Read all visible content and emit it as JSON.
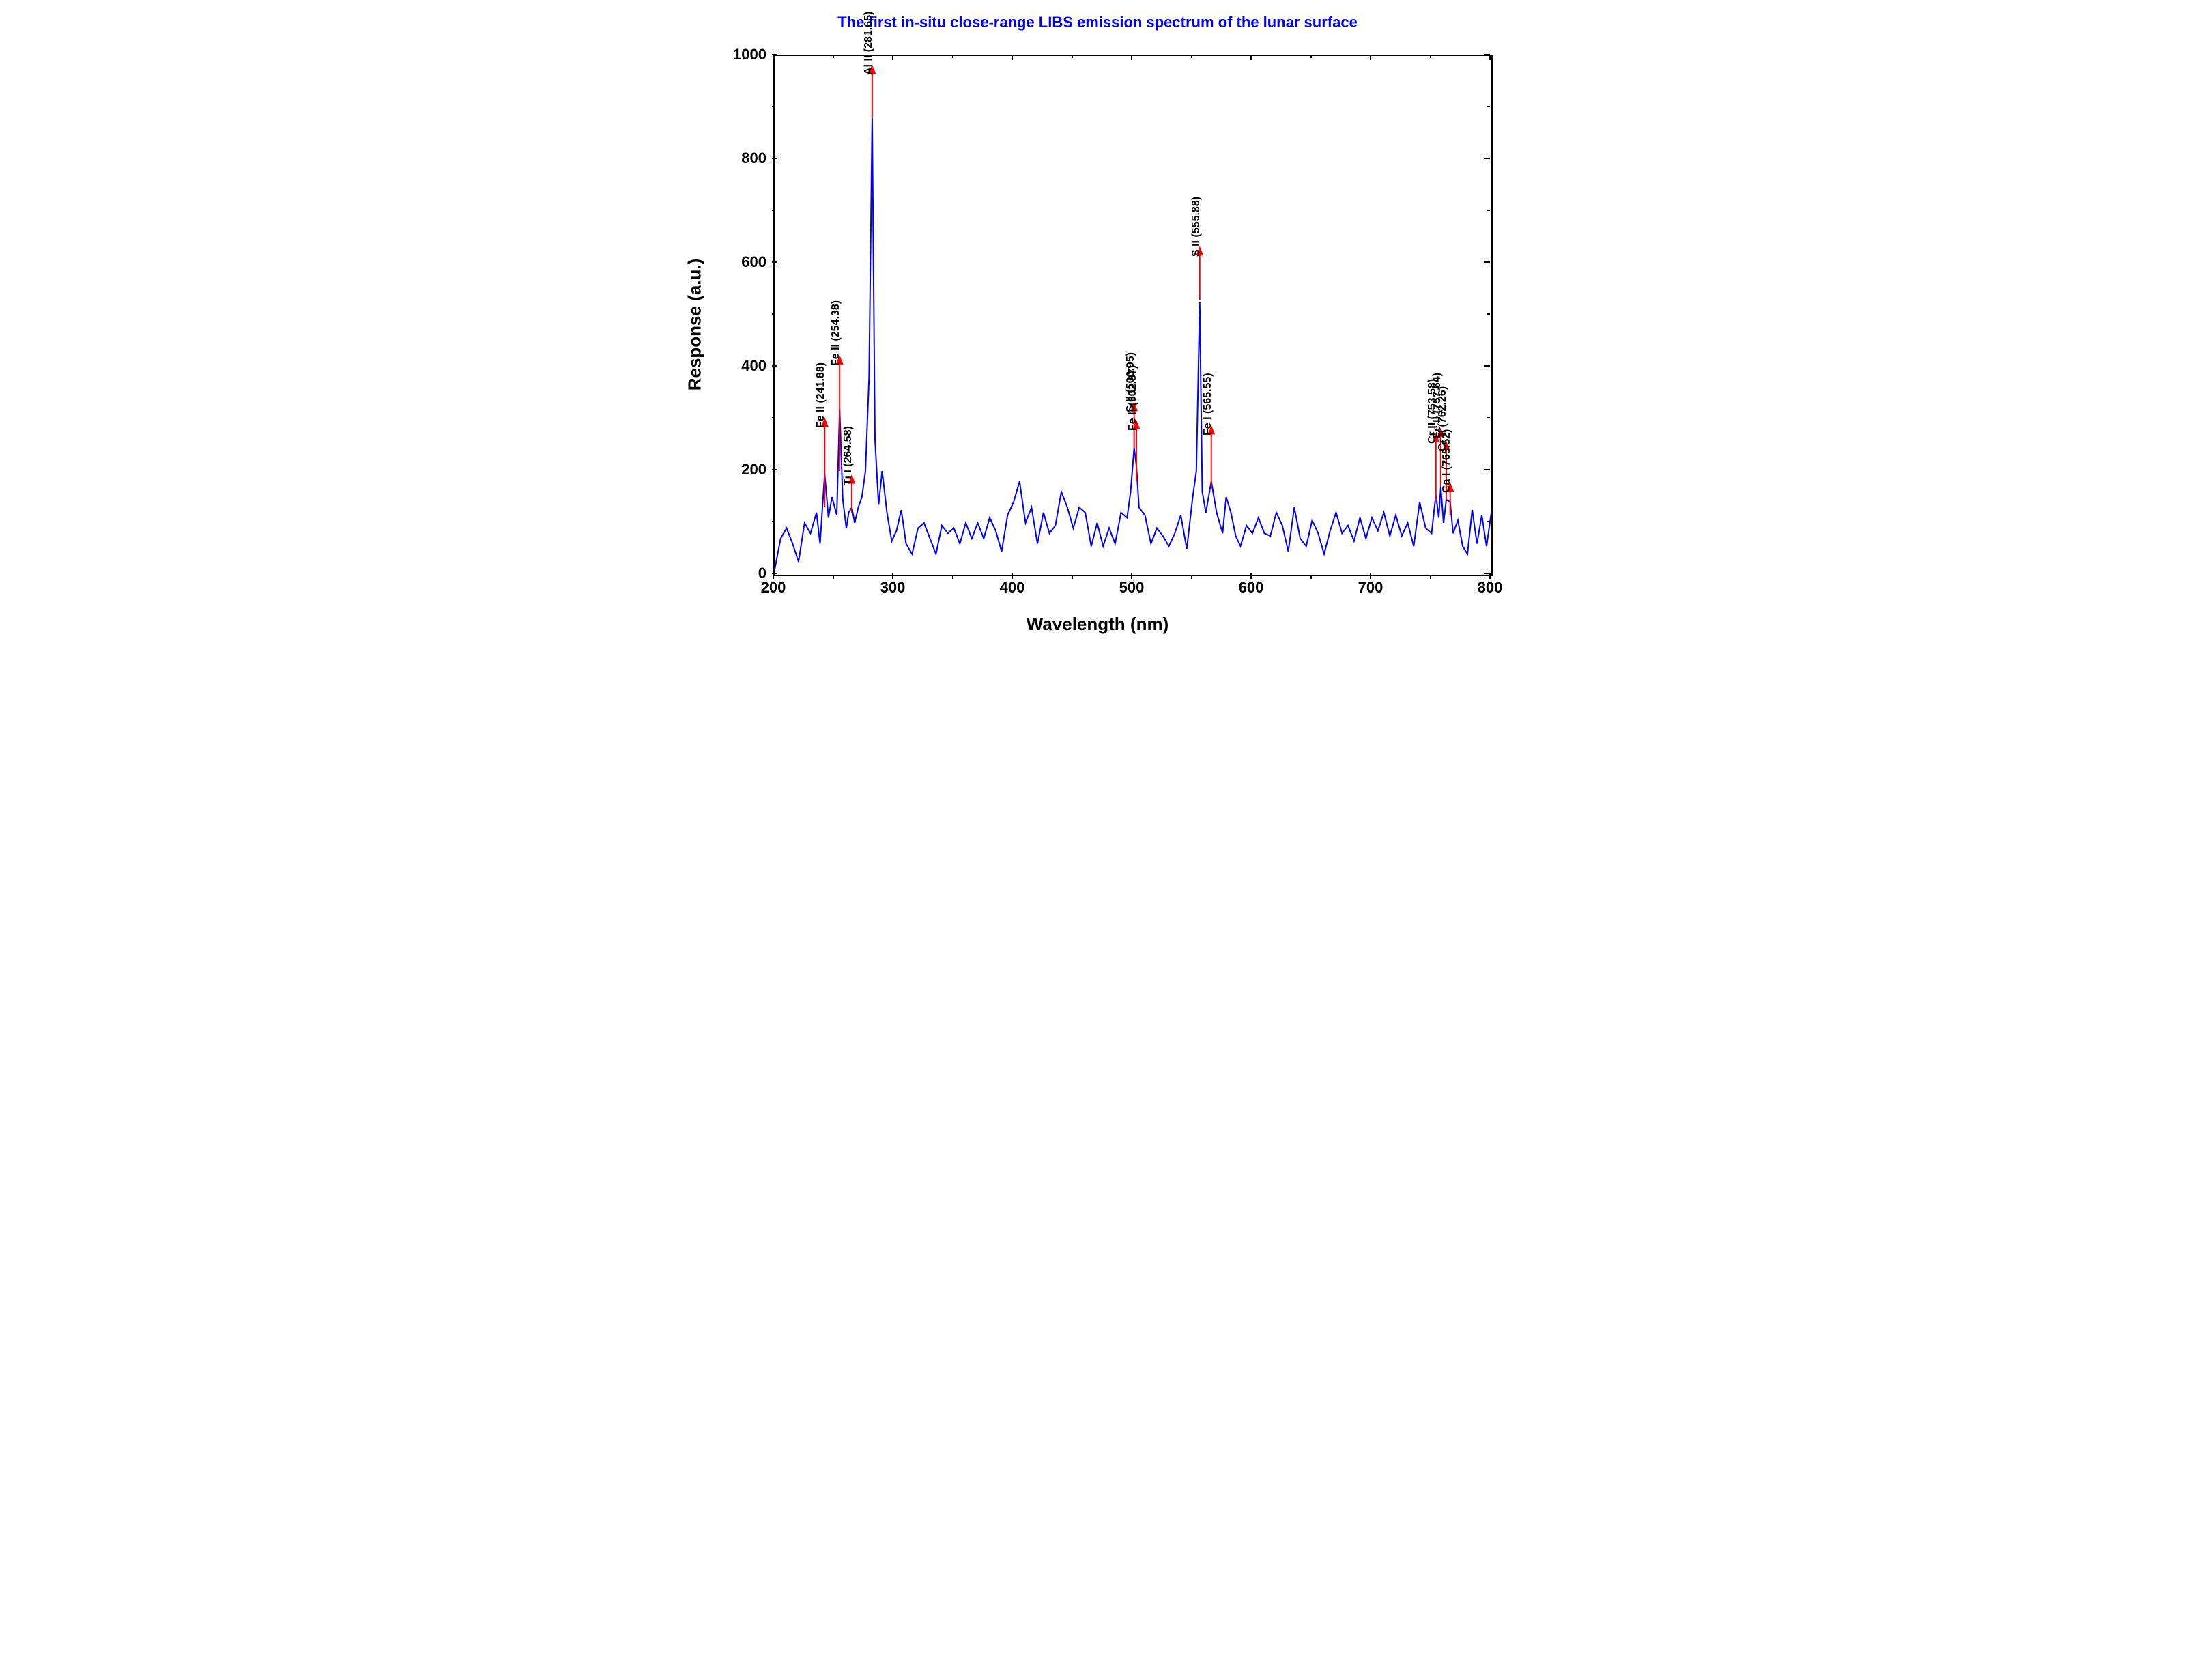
{
  "chart": {
    "type": "line-spectrum",
    "title": "The first in-situ close-range LIBS emission spectrum of the lunar surface",
    "title_color": "#0000ff",
    "title_fontsize": 22,
    "xlabel": "Wavelength (nm)",
    "ylabel": "Response (a.u.)",
    "label_fontsize": 26,
    "tick_fontsize": 22,
    "xlim": [
      200,
      800
    ],
    "ylim": [
      0,
      1000
    ],
    "xtick_step": 100,
    "ytick_step": 200,
    "xticks": [
      200,
      300,
      400,
      500,
      600,
      700,
      800
    ],
    "yticks": [
      0,
      200,
      400,
      600,
      800,
      1000
    ],
    "line_color": "#0000ff",
    "line_width": 2,
    "background_color": "#ffffff",
    "peak_arrow_color": "#ff0000",
    "peak_label_color": "#000000",
    "peak_label_fontsize": 16,
    "peaks": [
      {
        "label": "Fe II (241.88)",
        "wavelength": 241.88,
        "arrow_base": 130,
        "arrow_tip": 300
      },
      {
        "label": "Fe II (254.38)",
        "wavelength": 254.38,
        "arrow_base": 200,
        "arrow_tip": 420
      },
      {
        "label": "Ti I (264.58)",
        "wavelength": 264.58,
        "arrow_base": 120,
        "arrow_tip": 190
      },
      {
        "label": "Al II (281.65)",
        "wavelength": 281.65,
        "arrow_base": 880,
        "arrow_tip": 980
      },
      {
        "label": "S II (500.95)",
        "wavelength": 500.95,
        "arrow_base": 245,
        "arrow_tip": 330
      },
      {
        "label": "Fe II (502.87)",
        "wavelength": 502.87,
        "arrow_base": 180,
        "arrow_tip": 295
      },
      {
        "label": "S II (555.88)",
        "wavelength": 555.88,
        "arrow_base": 530,
        "arrow_tip": 630
      },
      {
        "label": "Fe I (565.55)",
        "wavelength": 565.55,
        "arrow_base": 170,
        "arrow_tip": 285
      },
      {
        "label": "Cr II (753.58)",
        "wavelength": 753.58,
        "arrow_base": 140,
        "arrow_tip": 270
      },
      {
        "label": "Fe II (757.64)",
        "wavelength": 757.64,
        "arrow_base": 170,
        "arrow_tip": 280
      },
      {
        "label": "Cr II (762.26)",
        "wavelength": 762.26,
        "arrow_base": 145,
        "arrow_tip": 255
      },
      {
        "label": "Ca I (765.52)",
        "wavelength": 765.52,
        "arrow_base": 115,
        "arrow_tip": 175
      }
    ],
    "spectrum_points": [
      [
        200,
        10
      ],
      [
        205,
        70
      ],
      [
        210,
        90
      ],
      [
        215,
        60
      ],
      [
        220,
        25
      ],
      [
        225,
        100
      ],
      [
        230,
        80
      ],
      [
        235,
        120
      ],
      [
        238,
        60
      ],
      [
        241.88,
        195
      ],
      [
        245,
        110
      ],
      [
        248,
        150
      ],
      [
        252,
        115
      ],
      [
        254.38,
        320
      ],
      [
        257,
        145
      ],
      [
        260,
        90
      ],
      [
        262,
        120
      ],
      [
        264.58,
        130
      ],
      [
        267,
        100
      ],
      [
        270,
        130
      ],
      [
        273,
        150
      ],
      [
        276,
        200
      ],
      [
        279,
        380
      ],
      [
        281.65,
        880
      ],
      [
        284,
        260
      ],
      [
        287,
        135
      ],
      [
        290,
        200
      ],
      [
        294,
        120
      ],
      [
        298,
        65
      ],
      [
        302,
        85
      ],
      [
        306,
        125
      ],
      [
        310,
        60
      ],
      [
        315,
        40
      ],
      [
        320,
        90
      ],
      [
        325,
        100
      ],
      [
        330,
        70
      ],
      [
        335,
        40
      ],
      [
        340,
        95
      ],
      [
        345,
        80
      ],
      [
        350,
        90
      ],
      [
        355,
        60
      ],
      [
        360,
        100
      ],
      [
        365,
        70
      ],
      [
        370,
        100
      ],
      [
        375,
        70
      ],
      [
        380,
        110
      ],
      [
        385,
        85
      ],
      [
        390,
        45
      ],
      [
        395,
        115
      ],
      [
        400,
        140
      ],
      [
        405,
        180
      ],
      [
        410,
        100
      ],
      [
        415,
        130
      ],
      [
        420,
        60
      ],
      [
        425,
        120
      ],
      [
        430,
        80
      ],
      [
        435,
        95
      ],
      [
        440,
        160
      ],
      [
        445,
        130
      ],
      [
        450,
        90
      ],
      [
        455,
        130
      ],
      [
        460,
        120
      ],
      [
        465,
        55
      ],
      [
        470,
        100
      ],
      [
        475,
        55
      ],
      [
        480,
        90
      ],
      [
        485,
        60
      ],
      [
        490,
        120
      ],
      [
        495,
        110
      ],
      [
        498,
        160
      ],
      [
        500.95,
        245
      ],
      [
        502.87,
        210
      ],
      [
        505,
        130
      ],
      [
        510,
        115
      ],
      [
        515,
        60
      ],
      [
        520,
        90
      ],
      [
        525,
        75
      ],
      [
        530,
        55
      ],
      [
        535,
        80
      ],
      [
        540,
        115
      ],
      [
        545,
        50
      ],
      [
        550,
        150
      ],
      [
        553,
        200
      ],
      [
        555.88,
        525
      ],
      [
        558,
        160
      ],
      [
        561,
        120
      ],
      [
        565.55,
        180
      ],
      [
        570,
        120
      ],
      [
        575,
        80
      ],
      [
        578,
        150
      ],
      [
        582,
        120
      ],
      [
        586,
        75
      ],
      [
        590,
        55
      ],
      [
        595,
        95
      ],
      [
        600,
        80
      ],
      [
        605,
        110
      ],
      [
        610,
        80
      ],
      [
        615,
        75
      ],
      [
        620,
        120
      ],
      [
        625,
        95
      ],
      [
        630,
        45
      ],
      [
        635,
        130
      ],
      [
        640,
        70
      ],
      [
        645,
        55
      ],
      [
        650,
        105
      ],
      [
        655,
        80
      ],
      [
        660,
        40
      ],
      [
        665,
        85
      ],
      [
        670,
        120
      ],
      [
        675,
        80
      ],
      [
        680,
        95
      ],
      [
        685,
        65
      ],
      [
        690,
        110
      ],
      [
        695,
        70
      ],
      [
        700,
        110
      ],
      [
        705,
        85
      ],
      [
        710,
        120
      ],
      [
        715,
        75
      ],
      [
        720,
        115
      ],
      [
        725,
        75
      ],
      [
        730,
        100
      ],
      [
        735,
        55
      ],
      [
        740,
        140
      ],
      [
        745,
        90
      ],
      [
        750,
        80
      ],
      [
        753.58,
        155
      ],
      [
        756,
        110
      ],
      [
        757.64,
        170
      ],
      [
        760,
        100
      ],
      [
        762.26,
        145
      ],
      [
        765.52,
        140
      ],
      [
        768,
        80
      ],
      [
        772,
        105
      ],
      [
        776,
        55
      ],
      [
        780,
        40
      ],
      [
        784,
        125
      ],
      [
        788,
        60
      ],
      [
        792,
        115
      ],
      [
        796,
        55
      ],
      [
        800,
        120
      ]
    ]
  }
}
